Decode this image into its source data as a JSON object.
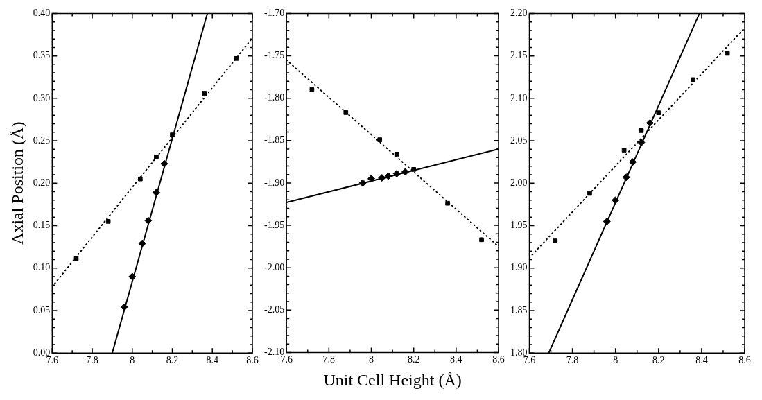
{
  "chart_data": [
    {
      "type": "scatter",
      "ylabel": "Axial Position (Å)",
      "xlim": [
        7.6,
        8.6
      ],
      "ylim": [
        0,
        0.4
      ],
      "grid": false,
      "legend": false,
      "xticks": [
        7.6,
        {
          "value": 7.7,
          "label": null
        },
        7.8,
        {
          "value": 7.9,
          "label": null
        },
        8,
        {
          "value": 8.1,
          "label": null
        },
        8.2,
        {
          "value": 8.3,
          "label": null
        },
        8.4,
        {
          "value": 8.5,
          "label": null
        },
        8.6
      ],
      "yticks": [
        {
          "value": 0,
          "label": "0.00"
        },
        {
          "value": 0.01,
          "label": null
        },
        {
          "value": 0.02,
          "label": null
        },
        {
          "value": 0.03,
          "label": null
        },
        {
          "value": 0.04,
          "label": null
        },
        {
          "value": 0.05,
          "label": "0.05"
        },
        {
          "value": 0.06,
          "label": null
        },
        {
          "value": 0.07,
          "label": null
        },
        {
          "value": 0.08,
          "label": null
        },
        {
          "value": 0.09,
          "label": null
        },
        {
          "value": 0.1,
          "label": "0.10"
        },
        {
          "value": 0.11,
          "label": null
        },
        {
          "value": 0.12,
          "label": null
        },
        {
          "value": 0.13,
          "label": null
        },
        {
          "value": 0.14,
          "label": null
        },
        {
          "value": 0.15,
          "label": "0.15"
        },
        {
          "value": 0.16,
          "label": null
        },
        {
          "value": 0.17,
          "label": null
        },
        {
          "value": 0.18,
          "label": null
        },
        {
          "value": 0.19,
          "label": null
        },
        {
          "value": 0.2,
          "label": "0.20"
        },
        {
          "value": 0.21,
          "label": null
        },
        {
          "value": 0.22,
          "label": null
        },
        {
          "value": 0.23,
          "label": null
        },
        {
          "value": 0.24,
          "label": null
        },
        {
          "value": 0.25,
          "label": "0.25"
        },
        {
          "value": 0.26,
          "label": null
        },
        {
          "value": 0.27,
          "label": null
        },
        {
          "value": 0.28,
          "label": null
        },
        {
          "value": 0.29,
          "label": null
        },
        {
          "value": 0.3,
          "label": "0.30"
        },
        {
          "value": 0.31,
          "label": null
        },
        {
          "value": 0.32,
          "label": null
        },
        {
          "value": 0.33,
          "label": null
        },
        {
          "value": 0.34,
          "label": null
        },
        {
          "value": 0.35,
          "label": "0.35"
        },
        {
          "value": 0.36,
          "label": null
        },
        {
          "value": 0.37,
          "label": null
        },
        {
          "value": 0.38,
          "label": null
        },
        {
          "value": 0.39,
          "label": null
        },
        {
          "value": 0.4,
          "label": "0.40"
        }
      ],
      "series": [
        {
          "marker": "square",
          "color": "#000000",
          "x": [
            7.72,
            7.88,
            8.04,
            8.12,
            8.2,
            8.36,
            8.52
          ],
          "values": [
            0.111,
            0.155,
            0.205,
            0.231,
            0.257,
            0.306,
            0.347
          ]
        },
        {
          "marker": "diamond",
          "color": "#000000",
          "x": [
            7.96,
            8.0,
            8.05,
            8.08,
            8.12,
            8.16
          ],
          "values": [
            0.054,
            0.09,
            0.129,
            0.156,
            0.189,
            0.223
          ]
        },
        {
          "type": "line",
          "line_style": "solid",
          "color": "#000000",
          "x": [
            7.9,
            8.375
          ],
          "values": [
            0,
            0.4
          ]
        },
        {
          "type": "line",
          "line_style": "dotted",
          "color": "#000000",
          "x": [
            7.6,
            8.6
          ],
          "values": [
            0.078,
            0.371
          ]
        }
      ]
    },
    {
      "type": "scatter",
      "xlabel": "Unit Cell Height (Å)",
      "xlim": [
        7.6,
        8.6
      ],
      "ylim": [
        -2.1,
        -1.7
      ],
      "grid": false,
      "legend": false,
      "xticks": [
        7.6,
        {
          "value": 7.7,
          "label": null
        },
        7.8,
        {
          "value": 7.9,
          "label": null
        },
        8,
        {
          "value": 8.1,
          "label": null
        },
        8.2,
        {
          "value": 8.3,
          "label": null
        },
        8.4,
        {
          "value": 8.5,
          "label": null
        },
        8.6
      ],
      "yticks": [
        {
          "value": -2.1,
          "label": "-2.10"
        },
        {
          "value": -2.09,
          "label": null
        },
        {
          "value": -2.08,
          "label": null
        },
        {
          "value": -2.07,
          "label": null
        },
        {
          "value": -2.06,
          "label": null
        },
        {
          "value": -2.05,
          "label": "-2.05"
        },
        {
          "value": -2.04,
          "label": null
        },
        {
          "value": -2.03,
          "label": null
        },
        {
          "value": -2.02,
          "label": null
        },
        {
          "value": -2.01,
          "label": null
        },
        {
          "value": -2.0,
          "label": "-2.00"
        },
        {
          "value": -1.99,
          "label": null
        },
        {
          "value": -1.98,
          "label": null
        },
        {
          "value": -1.97,
          "label": null
        },
        {
          "value": -1.96,
          "label": null
        },
        {
          "value": -1.95,
          "label": "-1.95"
        },
        {
          "value": -1.94,
          "label": null
        },
        {
          "value": -1.93,
          "label": null
        },
        {
          "value": -1.92,
          "label": null
        },
        {
          "value": -1.91,
          "label": null
        },
        {
          "value": -1.9,
          "label": "-1.90"
        },
        {
          "value": -1.89,
          "label": null
        },
        {
          "value": -1.88,
          "label": null
        },
        {
          "value": -1.87,
          "label": null
        },
        {
          "value": -1.86,
          "label": null
        },
        {
          "value": -1.85,
          "label": "-1.85"
        },
        {
          "value": -1.84,
          "label": null
        },
        {
          "value": -1.83,
          "label": null
        },
        {
          "value": -1.82,
          "label": null
        },
        {
          "value": -1.81,
          "label": null
        },
        {
          "value": -1.8,
          "label": "-1.80"
        },
        {
          "value": -1.79,
          "label": null
        },
        {
          "value": -1.78,
          "label": null
        },
        {
          "value": -1.77,
          "label": null
        },
        {
          "value": -1.76,
          "label": null
        },
        {
          "value": -1.75,
          "label": "-1.75"
        },
        {
          "value": -1.74,
          "label": null
        },
        {
          "value": -1.73,
          "label": null
        },
        {
          "value": -1.72,
          "label": null
        },
        {
          "value": -1.71,
          "label": null
        },
        {
          "value": -1.7,
          "label": "-1.70"
        }
      ],
      "series": [
        {
          "marker": "square",
          "color": "#000000",
          "x": [
            7.72,
            7.88,
            8.04,
            8.12,
            8.2,
            8.36,
            8.52
          ],
          "values": [
            -1.79,
            -1.817,
            -1.849,
            -1.866,
            -1.884,
            -1.924,
            -1.967
          ]
        },
        {
          "marker": "diamond",
          "color": "#000000",
          "x": [
            7.96,
            8.0,
            8.05,
            8.08,
            8.12,
            8.16
          ],
          "values": [
            -1.9,
            -1.895,
            -1.894,
            -1.892,
            -1.889,
            -1.887
          ]
        },
        {
          "type": "line",
          "line_style": "solid",
          "color": "#000000",
          "x": [
            7.6,
            8.6
          ],
          "values": [
            -1.923,
            -1.86
          ]
        },
        {
          "type": "line",
          "line_style": "dotted",
          "color": "#000000",
          "x": [
            7.6,
            8.6
          ],
          "values": [
            -1.755,
            -1.975
          ]
        }
      ]
    },
    {
      "type": "scatter",
      "xlim": [
        7.6,
        8.6
      ],
      "ylim": [
        1.8,
        2.2
      ],
      "grid": false,
      "legend": false,
      "xticks": [
        7.6,
        {
          "value": 7.7,
          "label": null
        },
        7.8,
        {
          "value": 7.9,
          "label": null
        },
        8,
        {
          "value": 8.1,
          "label": null
        },
        8.2,
        {
          "value": 8.3,
          "label": null
        },
        8.4,
        {
          "value": 8.5,
          "label": null
        },
        8.6
      ],
      "yticks": [
        {
          "value": 1.8,
          "label": "1.80"
        },
        {
          "value": 1.81,
          "label": null
        },
        {
          "value": 1.82,
          "label": null
        },
        {
          "value": 1.83,
          "label": null
        },
        {
          "value": 1.84,
          "label": null
        },
        {
          "value": 1.85,
          "label": "1.85"
        },
        {
          "value": 1.86,
          "label": null
        },
        {
          "value": 1.87,
          "label": null
        },
        {
          "value": 1.88,
          "label": null
        },
        {
          "value": 1.89,
          "label": null
        },
        {
          "value": 1.9,
          "label": "1.90"
        },
        {
          "value": 1.91,
          "label": null
        },
        {
          "value": 1.92,
          "label": null
        },
        {
          "value": 1.93,
          "label": null
        },
        {
          "value": 1.94,
          "label": null
        },
        {
          "value": 1.95,
          "label": "1.95"
        },
        {
          "value": 1.96,
          "label": null
        },
        {
          "value": 1.97,
          "label": null
        },
        {
          "value": 1.98,
          "label": null
        },
        {
          "value": 1.99,
          "label": null
        },
        {
          "value": 2.0,
          "label": "2.00"
        },
        {
          "value": 2.01,
          "label": null
        },
        {
          "value": 2.02,
          "label": null
        },
        {
          "value": 2.03,
          "label": null
        },
        {
          "value": 2.04,
          "label": null
        },
        {
          "value": 2.05,
          "label": "2.05"
        },
        {
          "value": 2.06,
          "label": null
        },
        {
          "value": 2.07,
          "label": null
        },
        {
          "value": 2.08,
          "label": null
        },
        {
          "value": 2.09,
          "label": null
        },
        {
          "value": 2.1,
          "label": "2.10"
        },
        {
          "value": 2.11,
          "label": null
        },
        {
          "value": 2.12,
          "label": null
        },
        {
          "value": 2.13,
          "label": null
        },
        {
          "value": 2.14,
          "label": null
        },
        {
          "value": 2.15,
          "label": "2.15"
        },
        {
          "value": 2.16,
          "label": null
        },
        {
          "value": 2.17,
          "label": null
        },
        {
          "value": 2.18,
          "label": null
        },
        {
          "value": 2.19,
          "label": null
        },
        {
          "value": 2.2,
          "label": "2.20"
        }
      ],
      "series": [
        {
          "marker": "square",
          "color": "#000000",
          "x": [
            7.72,
            7.88,
            8.04,
            8.12,
            8.2,
            8.36,
            8.52
          ],
          "values": [
            1.932,
            1.988,
            2.039,
            2.062,
            2.083,
            2.122,
            2.153
          ]
        },
        {
          "marker": "diamond",
          "color": "#000000",
          "x": [
            7.96,
            8.0,
            8.05,
            8.08,
            8.12,
            8.16
          ],
          "values": [
            1.955,
            1.98,
            2.007,
            2.025,
            2.048,
            2.071
          ]
        },
        {
          "type": "line",
          "line_style": "solid",
          "color": "#000000",
          "x": [
            7.69,
            8.39
          ],
          "values": [
            1.8,
            2.2
          ]
        },
        {
          "type": "line",
          "line_style": "dotted",
          "color": "#000000",
          "x": [
            7.6,
            8.6
          ],
          "values": [
            1.912,
            2.183
          ]
        }
      ]
    }
  ]
}
